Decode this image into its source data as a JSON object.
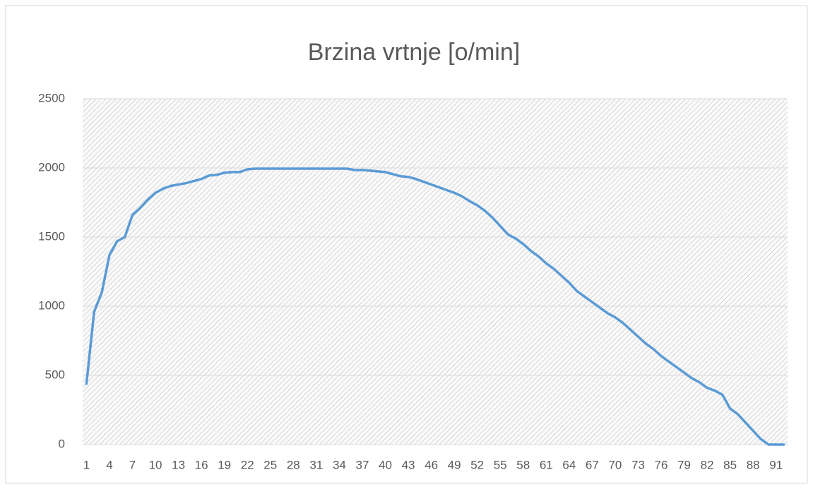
{
  "chart_data": {
    "type": "line",
    "title": "Brzina vrtnje [o/min]",
    "categories": [
      1,
      null,
      null,
      4,
      null,
      null,
      7,
      null,
      null,
      10,
      null,
      null,
      13,
      null,
      null,
      16,
      null,
      null,
      19,
      null,
      null,
      22,
      null,
      null,
      25,
      null,
      null,
      28,
      null,
      null,
      31,
      null,
      null,
      34,
      null,
      null,
      37,
      null,
      null,
      40,
      null,
      null,
      43,
      null,
      null,
      46,
      null,
      null,
      49,
      null,
      null,
      52,
      null,
      null,
      55,
      null,
      null,
      58,
      null,
      null,
      61,
      null,
      null,
      64,
      null,
      null,
      67,
      null,
      null,
      70,
      null,
      null,
      73,
      null,
      null,
      76,
      null,
      null,
      79,
      null,
      null,
      82,
      null,
      null,
      85,
      null,
      null,
      88,
      null,
      null,
      91,
      null
    ],
    "values": [
      440,
      960,
      1100,
      1370,
      1470,
      1500,
      1660,
      1710,
      1770,
      1820,
      1850,
      1870,
      1880,
      1890,
      1905,
      1920,
      1945,
      1950,
      1965,
      1970,
      1970,
      1990,
      1995,
      1995,
      1995,
      1995,
      1995,
      1995,
      1995,
      1995,
      1995,
      1995,
      1995,
      1995,
      1995,
      1985,
      1985,
      1980,
      1975,
      1970,
      1955,
      1940,
      1935,
      1920,
      1900,
      1880,
      1860,
      1840,
      1820,
      1795,
      1760,
      1730,
      1690,
      1640,
      1580,
      1520,
      1490,
      1450,
      1400,
      1360,
      1310,
      1270,
      1220,
      1170,
      1110,
      1070,
      1030,
      990,
      950,
      920,
      880,
      830,
      780,
      730,
      690,
      640,
      600,
      560,
      520,
      480,
      450,
      410,
      390,
      360,
      260,
      220,
      160,
      100,
      40,
      0,
      0,
      0
    ],
    "color": "#5b9bd5",
    "ylim": [
      0,
      2500
    ],
    "yticks": [
      0,
      500,
      1000,
      1500,
      2000,
      2500
    ],
    "grid": true
  }
}
